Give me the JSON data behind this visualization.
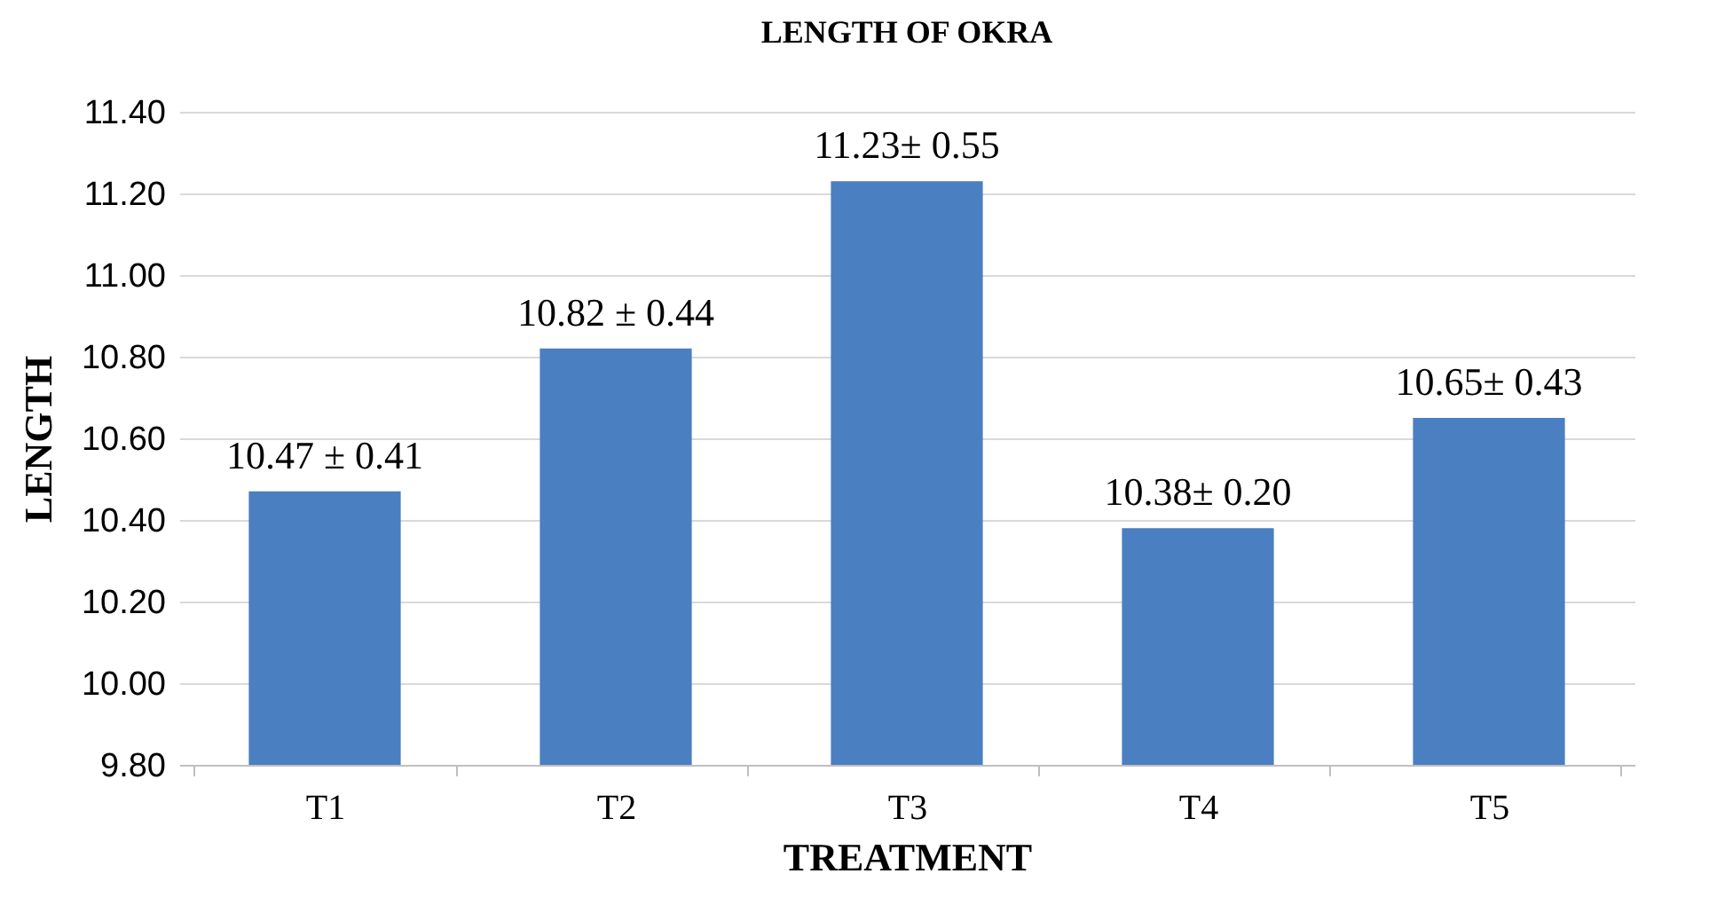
{
  "chart_data": {
    "type": "bar",
    "title": "LENGTH OF OKRA",
    "xlabel": "TREATMENT",
    "ylabel": "LENGTH",
    "categories": [
      "T1",
      "T2",
      "T3",
      "T4",
      "T5"
    ],
    "values": [
      10.47,
      10.82,
      11.23,
      10.38,
      10.65
    ],
    "value_labels": [
      "10.47 ± 0.41",
      "10.82 ± 0.44",
      "11.23± 0.55",
      "10.38± 0.20",
      "10.65± 0.43"
    ],
    "color": "#4a7fc1",
    "ylim": [
      9.8,
      11.4
    ],
    "yticks": [
      {
        "value": 9.8,
        "label": "9.80"
      },
      {
        "value": 10.0,
        "label": "10.00"
      },
      {
        "value": 10.2,
        "label": "10.20"
      },
      {
        "value": 10.4,
        "label": "10.40"
      },
      {
        "value": 10.6,
        "label": "10.60"
      },
      {
        "value": 10.8,
        "label": "10.80"
      },
      {
        "value": 11.0,
        "label": "11.00"
      },
      {
        "value": 11.2,
        "label": "11.20"
      },
      {
        "value": 11.4,
        "label": "11.40"
      }
    ],
    "grid": "y"
  }
}
